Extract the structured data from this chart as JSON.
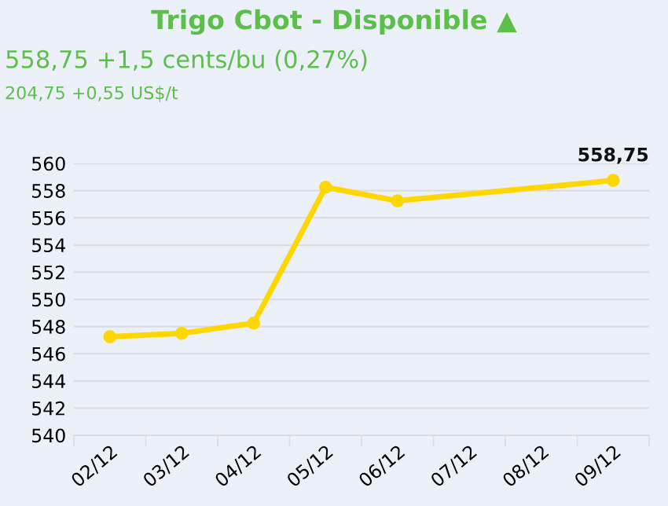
{
  "chart_data": {
    "type": "line",
    "title": "Trigo Cbot - Disponible ▲",
    "subtitle": "558,75 +1,5 cents/bu (0,27%)",
    "annotations": [
      "204,75 +0,55 US$/t"
    ],
    "categories": [
      "02/12",
      "03/12",
      "04/12",
      "05/12",
      "06/12",
      "07/12",
      "08/12",
      "09/12"
    ],
    "series": [
      {
        "color": "#ffd700",
        "values": [
          547.25,
          547.5,
          548.25,
          558.25,
          557.25,
          null,
          null,
          558.75
        ],
        "value_labels": [
          null,
          null,
          null,
          null,
          null,
          null,
          null,
          "558,75"
        ]
      }
    ],
    "ylim": [
      540,
      560
    ],
    "yticks": [
      540,
      542,
      544,
      546,
      548,
      550,
      552,
      554,
      556,
      558,
      560
    ],
    "grid": "y",
    "marker": "circle",
    "line_style": "solid"
  }
}
